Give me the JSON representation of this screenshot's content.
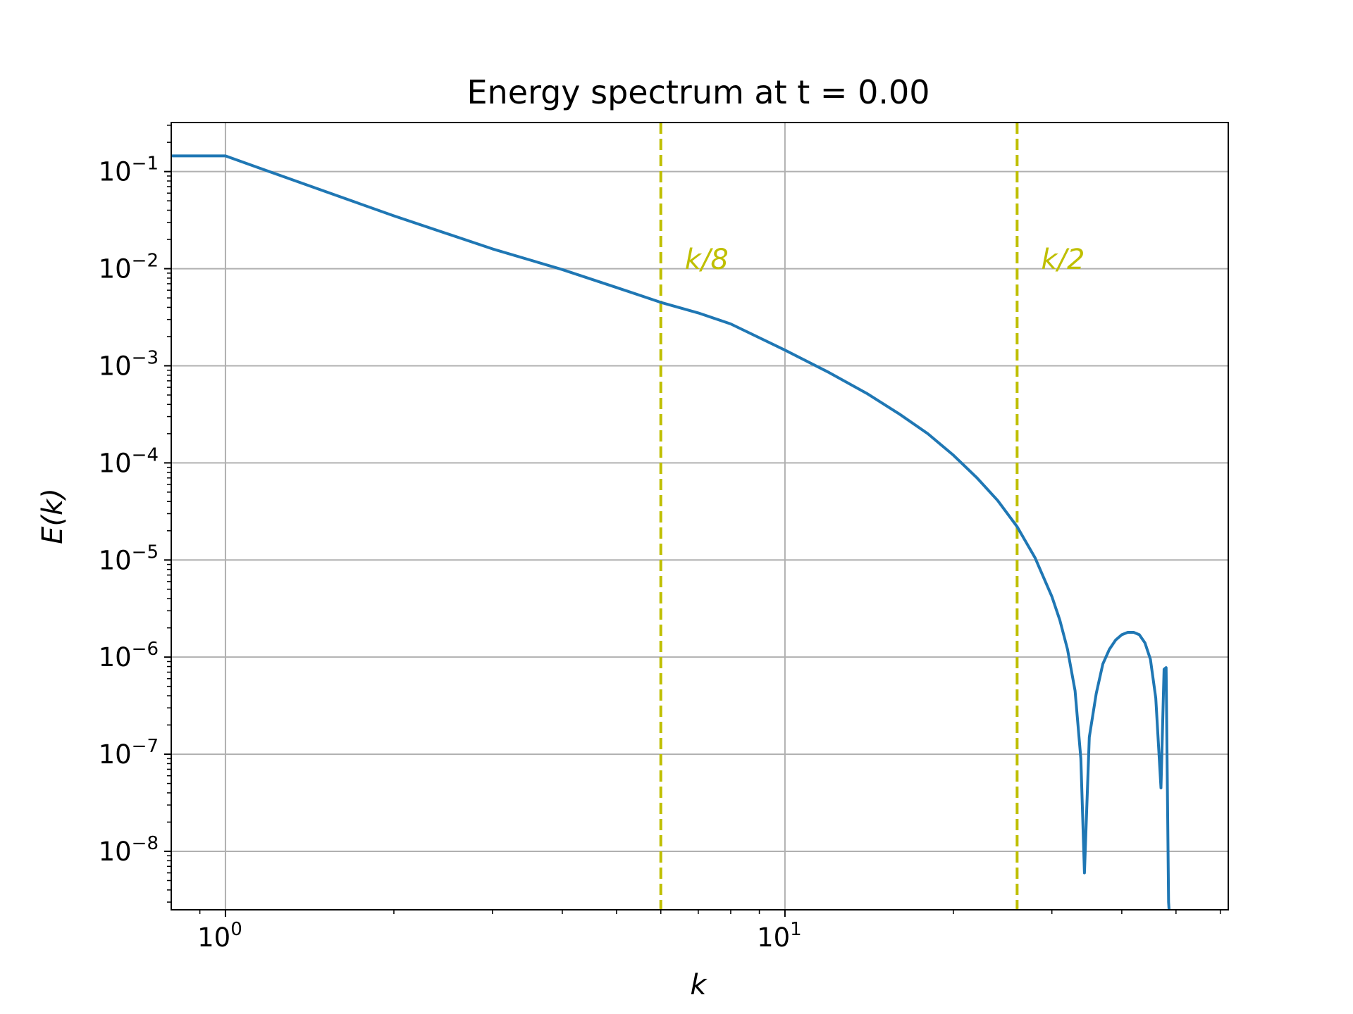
{
  "chart_data": {
    "type": "line",
    "title": "Energy spectrum at t = 0.00",
    "xlabel": "k",
    "ylabel": "E(k)",
    "xscale": "log",
    "yscale": "log",
    "xlim": [
      0.8,
      62
    ],
    "ylim": [
      2.5e-09,
      0.32
    ],
    "grid": true,
    "x_ticks": [
      {
        "value": 1,
        "base": "10",
        "exp": "0"
      },
      {
        "value": 10,
        "base": "10",
        "exp": "1"
      }
    ],
    "y_ticks": [
      {
        "value": 0.1,
        "base": "10",
        "exp": "−1"
      },
      {
        "value": 0.01,
        "base": "10",
        "exp": "−2"
      },
      {
        "value": 0.001,
        "base": "10",
        "exp": "−3"
      },
      {
        "value": 0.0001,
        "base": "10",
        "exp": "−4"
      },
      {
        "value": 1e-05,
        "base": "10",
        "exp": "−5"
      },
      {
        "value": 1e-06,
        "base": "10",
        "exp": "−6"
      },
      {
        "value": 1e-07,
        "base": "10",
        "exp": "−7"
      },
      {
        "value": 1e-08,
        "base": "10",
        "exp": "−8"
      }
    ],
    "series": [
      {
        "color": "#1f77b4",
        "x": [
          0.8,
          1.0,
          1.5,
          2.0,
          3.0,
          4.0,
          5.0,
          6.0,
          7.0,
          8.0,
          10.0,
          12.0,
          14.0,
          16.0,
          18.0,
          20.0,
          22.0,
          24.0,
          26.0,
          28.0,
          30.0,
          31.0,
          32.0,
          33.0,
          33.8,
          34.3,
          35.0,
          36.0,
          37.0,
          38.0,
          39.0,
          40.0,
          41.0,
          42.0,
          43.0,
          44.0,
          45.0,
          46.0,
          47.0,
          47.6,
          48.0,
          48.5,
          48.6
        ],
        "y": [
          0.145,
          0.145,
          0.063,
          0.035,
          0.016,
          0.0098,
          0.0064,
          0.0045,
          0.0035,
          0.0027,
          0.00145,
          0.00085,
          0.00052,
          0.00032,
          0.0002,
          0.00012,
          7.1e-05,
          4.1e-05,
          2.2e-05,
          1.05e-05,
          4.2e-06,
          2.4e-06,
          1.2e-06,
          4.5e-07,
          9e-08,
          6e-09,
          1.5e-07,
          4.2e-07,
          8.5e-07,
          1.2e-06,
          1.5e-06,
          1.7e-06,
          1.8e-06,
          1.8e-06,
          1.7e-06,
          1.4e-06,
          9.5e-07,
          3.8e-07,
          4.5e-08,
          7.5e-07,
          7.8e-07,
          3e-09,
          2.5e-09
        ]
      }
    ],
    "vlines": [
      {
        "x": 6.0,
        "label": "k/8",
        "color": "#bfbf00",
        "style": "dashed"
      },
      {
        "x": 26.0,
        "label": "k/2",
        "color": "#bfbf00",
        "style": "dashed"
      }
    ]
  }
}
